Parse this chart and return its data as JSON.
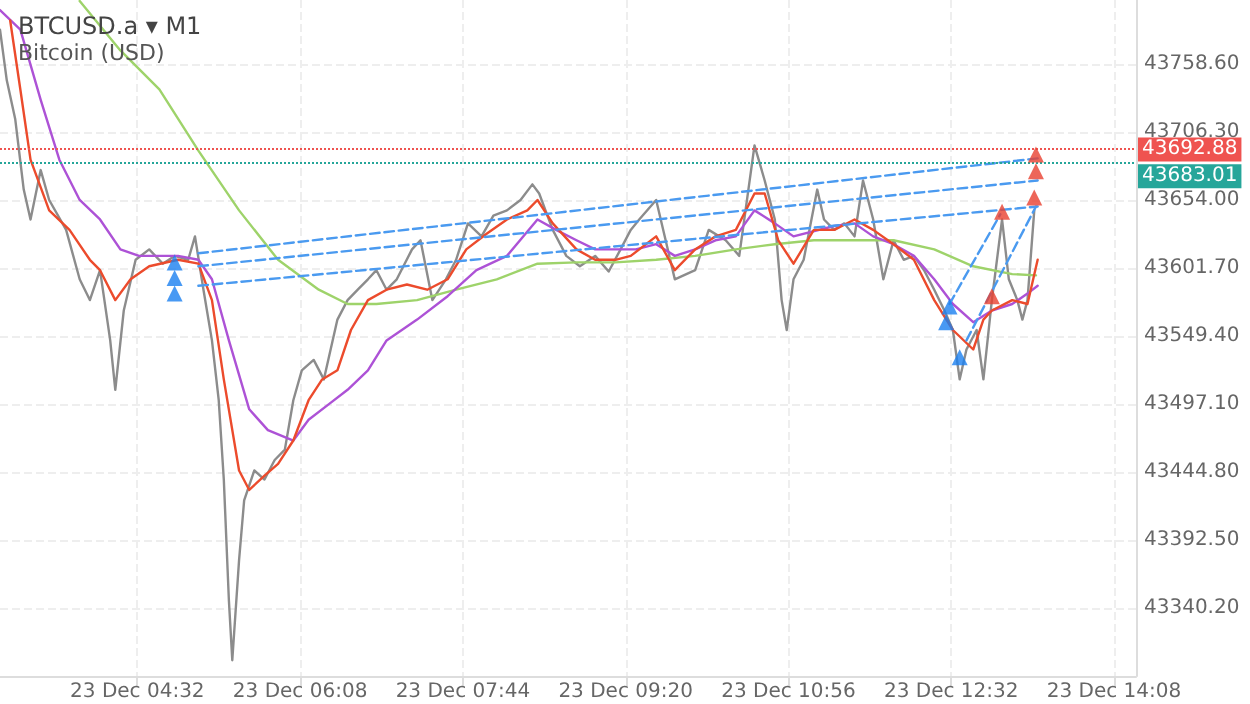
{
  "chart_data": {
    "type": "line",
    "title": "BTCUSD.a ▾ M1",
    "subtitle": "Bitcoin (USD)",
    "xlim": [
      "--12-23T03:11",
      "--12-23T14:21"
    ],
    "xticks": [
      {
        "value": "--12-23T04:32",
        "label": "23 Dec 04:32"
      },
      {
        "value": "--12-23T06:08",
        "label": "23 Dec 06:08"
      },
      {
        "value": "--12-23T07:44",
        "label": "23 Dec 07:44"
      },
      {
        "value": "--12-23T09:20",
        "label": "23 Dec 09:20"
      },
      {
        "value": "--12-23T10:56",
        "label": "23 Dec 10:56"
      },
      {
        "value": "--12-23T12:32",
        "label": "23 Dec 12:32"
      },
      {
        "value": "--12-23T14:08",
        "label": "23 Dec 14:08"
      }
    ],
    "ylim": [
      43287.9,
      43807.8
    ],
    "yticks": [
      {
        "value": 43340.2,
        "label": "43340.20"
      },
      {
        "value": 43392.5,
        "label": "43392.50"
      },
      {
        "value": 43444.8,
        "label": "43444.80"
      },
      {
        "value": 43497.1,
        "label": "43497.10"
      },
      {
        "value": 43549.4,
        "label": "43549.40"
      },
      {
        "value": 43601.7,
        "label": "43601.70"
      },
      {
        "value": 43654.0,
        "label": "43654.00"
      },
      {
        "value": 43706.3,
        "label": "43706.30"
      },
      {
        "value": 43758.6,
        "label": "43758.60"
      }
    ],
    "grid": true,
    "marker": "none",
    "series": [
      {
        "color": "#8c8c8c",
        "x": [
          "--12-23T03:11",
          "--12-23T03:15",
          "--12-23T03:20",
          "--12-23T03:25",
          "--12-23T03:29",
          "--12-23T03:35",
          "--12-23T03:40",
          "--12-23T03:50",
          "--12-23T03:58",
          "--12-23T04:04",
          "--12-23T04:10",
          "--12-23T04:16",
          "--12-23T04:19",
          "--12-23T04:24",
          "--12-23T04:31",
          "--12-23T04:39",
          "--12-23T04:47",
          "--12-23T04:54",
          "--12-23T05:02",
          "--12-23T05:06",
          "--12-23T05:11",
          "--12-23T05:16",
          "--12-23T05:20",
          "--12-23T05:23",
          "--12-23T05:26",
          "--12-23T05:28",
          "--12-23T05:32",
          "--12-23T05:35",
          "--12-23T05:41",
          "--12-23T05:47",
          "--12-23T05:53",
          "--12-23T05:59",
          "--12-23T06:04",
          "--12-23T06:09",
          "--12-23T06:16",
          "--12-23T06:22",
          "--12-23T06:30",
          "--12-23T06:36",
          "--12-23T06:42",
          "--12-23T06:48",
          "--12-23T06:53",
          "--12-23T06:59",
          "--12-23T07:05",
          "--12-23T07:14",
          "--12-23T07:19",
          "--12-23T07:26",
          "--12-23T07:34",
          "--12-23T07:40",
          "--12-23T07:47",
          "--12-23T07:55",
          "--12-23T08:02",
          "--12-23T08:10",
          "--12-23T08:18",
          "--12-23T08:25",
          "--12-23T08:29",
          "--12-23T08:37",
          "--12-23T08:45",
          "--12-23T08:53",
          "--12-23T09:02",
          "--12-23T09:10",
          "--12-23T09:17",
          "--12-23T09:23",
          "--12-23T09:28",
          "--12-23T09:38",
          "--12-23T09:49",
          "--12-23T10:01",
          "--12-23T10:09",
          "--12-23T10:19",
          "--12-23T10:27",
          "--12-23T10:36",
          "--12-23T10:42",
          "--12-23T10:48",
          "--12-23T10:52",
          "--12-23T10:55",
          "--12-23T10:59",
          "--12-23T11:05",
          "--12-23T11:13",
          "--12-23T11:17",
          "--12-23T11:23",
          "--12-23T11:29",
          "--12-23T11:35",
          "--12-23T11:40",
          "--12-23T11:46",
          "--12-23T11:52",
          "--12-23T11:58",
          "--12-23T12:04",
          "--12-23T12:10",
          "--12-23T12:16",
          "--12-23T12:22",
          "--12-23T12:28",
          "--12-23T12:33",
          "--12-23T12:37",
          "--12-23T12:41",
          "--12-23T12:47",
          "--12-23T12:51",
          "--12-23T12:56",
          "--12-23T13:02",
          "--12-23T13:06",
          "--12-23T13:11",
          "--12-23T13:14",
          "--12-23T13:17",
          "--12-23T13:21"
        ],
        "values": [
          43785,
          43746,
          43716,
          43662,
          43639,
          43677,
          43654,
          43631,
          43593,
          43577,
          43600,
          43546,
          43508,
          43569,
          43608,
          43616,
          43605,
          43611,
          43608,
          43626,
          43585,
          43546,
          43500,
          43439,
          43346,
          43300,
          43377,
          43423,
          43446,
          43439,
          43454,
          43462,
          43500,
          43523,
          43531,
          43516,
          43562,
          43577,
          43585,
          43593,
          43600,
          43585,
          43593,
          43616,
          43623,
          43577,
          43593,
          43608,
          43636,
          43626,
          43642,
          43646,
          43654,
          43666,
          43659,
          43631,
          43611,
          43603,
          43611,
          43599,
          43616,
          43631,
          43639,
          43654,
          43593,
          43600,
          43631,
          43623,
          43611,
          43696,
          43669,
          43639,
          43577,
          43554,
          43593,
          43608,
          43662,
          43639,
          43631,
          43636,
          43626,
          43669,
          43639,
          43593,
          43623,
          43608,
          43611,
          43600,
          43585,
          43569,
          43554,
          43516,
          43539,
          43554,
          43516,
          43577,
          43639,
          43593,
          43577,
          43562,
          43577,
          43646
        ]
      },
      {
        "color": "#9ed36a",
        "x": [
          "--12-23T03:58",
          "--12-23T04:22",
          "--12-23T04:45",
          "--12-23T05:08",
          "--12-23T05:32",
          "--12-23T05:55",
          "--12-23T06:19",
          "--12-23T06:36",
          "--12-23T06:53",
          "--12-23T07:17",
          "--12-23T07:40",
          "--12-23T08:04",
          "--12-23T08:28",
          "--12-23T08:51",
          "--12-23T09:14",
          "--12-23T09:38",
          "--12-23T10:01",
          "--12-23T10:25",
          "--12-23T10:48",
          "--12-23T11:11",
          "--12-23T11:35",
          "--12-23T11:58",
          "--12-23T12:22",
          "--12-23T12:45",
          "--12-23T13:08",
          "--12-23T13:22"
        ],
        "values": [
          43807,
          43769,
          43739,
          43692,
          43646,
          43608,
          43585,
          43574,
          43574,
          43577,
          43585,
          43593,
          43605,
          43606,
          43606,
          43608,
          43611,
          43616,
          43620,
          43623,
          43623,
          43623,
          43616,
          43603,
          43597,
          43596
        ]
      },
      {
        "color": "#ad52d6",
        "x": [
          "--12-23T03:11",
          "--12-23T03:23",
          "--12-23T03:35",
          "--12-23T03:46",
          "--12-23T03:58",
          "--12-23T04:10",
          "--12-23T04:22",
          "--12-23T04:33",
          "--12-23T04:56",
          "--12-23T05:08",
          "--12-23T05:16",
          "--12-23T05:26",
          "--12-23T05:38",
          "--12-23T05:49",
          "--12-23T06:04",
          "--12-23T06:13",
          "--12-23T06:25",
          "--12-23T06:36",
          "--12-23T06:48",
          "--12-23T06:59",
          "--12-23T07:17",
          "--12-23T07:35",
          "--12-23T07:52",
          "--12-23T08:10",
          "--12-23T08:28",
          "--12-23T08:39",
          "--12-23T08:51",
          "--12-23T09:02",
          "--12-23T09:26",
          "--12-23T09:38",
          "--12-23T09:49",
          "--12-23T10:01",
          "--12-23T10:13",
          "--12-23T10:25",
          "--12-23T10:36",
          "--12-23T10:48",
          "--12-23T10:59",
          "--12-23T11:23",
          "--12-23T11:35",
          "--12-23T11:46",
          "--12-23T11:58",
          "--12-23T12:10",
          "--12-23T12:22",
          "--12-23T12:33",
          "--12-23T12:45",
          "--12-23T12:56",
          "--12-23T13:08",
          "--12-23T13:17",
          "--12-23T13:23"
        ],
        "values": [
          43800,
          43785,
          43731,
          43685,
          43654,
          43639,
          43616,
          43611,
          43611,
          43608,
          43593,
          43546,
          43493,
          43477,
          43469,
          43485,
          43497,
          43508,
          43523,
          43546,
          43562,
          43580,
          43600,
          43611,
          43639,
          43631,
          43623,
          43616,
          43616,
          43620,
          43611,
          43616,
          43623,
          43626,
          43646,
          43636,
          43626,
          43634,
          43636,
          43626,
          43620,
          43611,
          43593,
          43574,
          43560,
          43569,
          43574,
          43582,
          43588
        ]
      },
      {
        "color": "#ec4b2c",
        "x": [
          "--12-23T03:17",
          "--12-23T03:23",
          "--12-23T03:29",
          "--12-23T03:40",
          "--12-23T03:52",
          "--12-23T04:04",
          "--12-23T04:10",
          "--12-23T04:19",
          "--12-23T04:28",
          "--12-23T04:39",
          "--12-23T04:56",
          "--12-23T05:08",
          "--12-23T05:16",
          "--12-23T05:23",
          "--12-23T05:32",
          "--12-23T05:38",
          "--12-23T05:47",
          "--12-23T05:55",
          "--12-23T06:04",
          "--12-23T06:13",
          "--12-23T06:21",
          "--12-23T06:30",
          "--12-23T06:38",
          "--12-23T06:48",
          "--12-23T06:59",
          "--12-23T07:11",
          "--12-23T07:23",
          "--12-23T07:35",
          "--12-23T07:46",
          "--12-23T07:58",
          "--12-23T08:10",
          "--12-23T08:22",
          "--12-23T08:28",
          "--12-23T08:37",
          "--12-23T08:51",
          "--12-23T09:02",
          "--12-23T09:14",
          "--12-23T09:23",
          "--12-23T09:38",
          "--12-23T09:49",
          "--12-23T10:01",
          "--12-23T10:13",
          "--12-23T10:25",
          "--12-23T10:36",
          "--12-23T10:42",
          "--12-23T10:50",
          "--12-23T10:59",
          "--12-23T11:11",
          "--12-23T11:23",
          "--12-23T11:35",
          "--12-23T11:46",
          "--12-23T11:58",
          "--12-23T12:10",
          "--12-23T12:22",
          "--12-23T12:33",
          "--12-23T12:45",
          "--12-23T12:51",
          "--12-23T12:56",
          "--12-23T13:08",
          "--12-23T13:17",
          "--12-23T13:23"
        ],
        "values": [
          43792,
          43739,
          43685,
          43646,
          43631,
          43608,
          43600,
          43577,
          43593,
          43603,
          43608,
          43605,
          43577,
          43516,
          43446,
          43431,
          43442,
          43451,
          43469,
          43500,
          43516,
          43523,
          43554,
          43577,
          43585,
          43589,
          43585,
          43593,
          43616,
          43628,
          43639,
          43646,
          43654,
          43636,
          43616,
          43608,
          43608,
          43611,
          43626,
          43600,
          43616,
          43626,
          43631,
          43659,
          43659,
          43623,
          43605,
          43631,
          43631,
          43639,
          43631,
          43620,
          43608,
          43577,
          43554,
          43539,
          43562,
          43569,
          43577,
          43574,
          43608
        ]
      },
      {
        "color": "#4a9af0",
        "line_style": "dashed",
        "x": [
          "--12-23T05:08",
          "--12-23T13:23"
        ],
        "values": [
          43613,
          43686
        ]
      },
      {
        "color": "#4a9af0",
        "line_style": "dashed",
        "x": [
          "--12-23T05:08",
          "--12-23T13:23"
        ],
        "values": [
          43603,
          43669
        ]
      },
      {
        "color": "#4a9af0",
        "line_style": "dashed",
        "x": [
          "--12-23T05:08",
          "--12-23T13:23"
        ],
        "values": [
          43588,
          43649
        ]
      },
      {
        "color": "#4a9af0",
        "line_style": "dashed",
        "x": [
          "--12-23T12:31",
          "--12-23T13:01"
        ],
        "values": [
          43574,
          43643
        ]
      },
      {
        "color": "#4a9af0",
        "line_style": "dashed",
        "x": [
          "--12-23T12:41",
          "--12-23T13:22"
        ],
        "values": [
          43546,
          43649
        ]
      },
      {
        "type": "scatter",
        "color": "#1a7ff0",
        "marker": "triangle",
        "x": [
          "--12-23T04:54",
          "--12-23T04:54",
          "--12-23T04:54",
          "--12-23T12:31",
          "--12-23T12:29",
          "--12-23T12:37"
        ],
        "values": [
          43606,
          43594,
          43582,
          43572,
          43560,
          43533
        ]
      },
      {
        "type": "scatter",
        "color": "#e8402f",
        "marker": "triangle",
        "x": [
          "--12-23T13:22",
          "--12-23T13:22",
          "--12-23T13:21",
          "--12-23T13:02",
          "--12-23T12:56"
        ],
        "values": [
          43689,
          43676,
          43656,
          43645,
          43580
        ]
      }
    ],
    "ref_lines": [
      {
        "axis": "y",
        "value": 43692.88,
        "label": "43692.88",
        "color": "#ef5350",
        "line_style": "dotted"
      },
      {
        "axis": "y",
        "value": 43683.01,
        "label": "43683.01",
        "color": "#26a69a",
        "line_style": "dotted"
      }
    ]
  }
}
